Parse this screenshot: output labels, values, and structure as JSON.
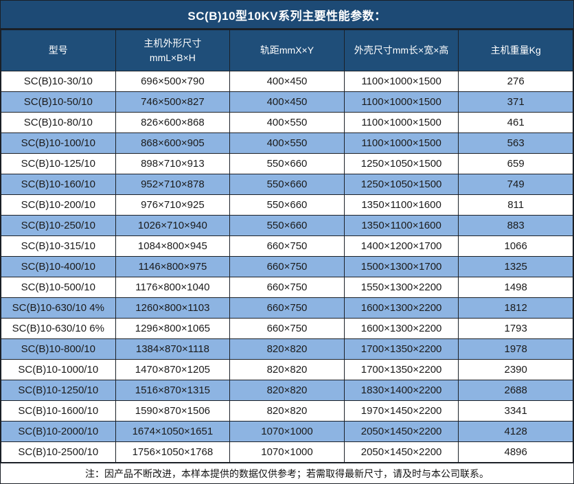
{
  "title": "SC(B)10型10KV系列主要性能参数：",
  "table": {
    "columns": [
      {
        "label": "型号"
      },
      {
        "line1": "主机外形尺寸",
        "line2": "mmL×B×H"
      },
      {
        "label": "轨距mmX×Y"
      },
      {
        "label": "外壳尺寸mm长×宽×高"
      },
      {
        "label": "主机重量Kg"
      }
    ],
    "rows": [
      [
        "SC(B)10-30/10",
        "696×500×790",
        "400×450",
        "1100×1000×1500",
        "276"
      ],
      [
        "SC(B)10-50/10",
        "746×500×827",
        "400×450",
        "1100×1000×1500",
        "371"
      ],
      [
        "SC(B)10-80/10",
        "826×600×868",
        "400×550",
        "1100×1000×1500",
        "461"
      ],
      [
        "SC(B)10-100/10",
        "868×600×905",
        "400×550",
        "1100×1000×1500",
        "563"
      ],
      [
        "SC(B)10-125/10",
        "898×710×913",
        "550×660",
        "1250×1050×1500",
        "659"
      ],
      [
        "SC(B)10-160/10",
        "952×710×878",
        "550×660",
        "1250×1050×1500",
        "749"
      ],
      [
        "SC(B)10-200/10",
        "976×710×925",
        "550×660",
        "1350×1100×1600",
        "811"
      ],
      [
        "SC(B)10-250/10",
        "1026×710×940",
        "550×660",
        "1350×1100×1600",
        "883"
      ],
      [
        "SC(B)10-315/10",
        "1084×800×945",
        "660×750",
        "1400×1200×1700",
        "1066"
      ],
      [
        "SC(B)10-400/10",
        "1146×800×975",
        "660×750",
        "1500×1300×1700",
        "1325"
      ],
      [
        "SC(B)10-500/10",
        "1176×800×1040",
        "660×750",
        "1550×1300×2200",
        "1498"
      ],
      [
        "SC(B)10-630/10 4%",
        "1260×800×1103",
        "660×750",
        "1600×1300×2200",
        "1812"
      ],
      [
        "SC(B)10-630/10 6%",
        "1296×800×1065",
        "660×750",
        "1600×1300×2200",
        "1793"
      ],
      [
        "SC(B)10-800/10",
        "1384×870×1118",
        "820×820",
        "1700×1350×2200",
        "1978"
      ],
      [
        "SC(B)10-1000/10",
        "1470×870×1205",
        "820×820",
        "1700×1350×2200",
        "2390"
      ],
      [
        "SC(B)10-1250/10",
        "1516×870×1315",
        "820×820",
        "1830×1400×2200",
        "2688"
      ],
      [
        "SC(B)10-1600/10",
        "1590×870×1506",
        "820×820",
        "1970×1450×2200",
        "3341"
      ],
      [
        "SC(B)10-2000/10",
        "1674×1050×1651",
        "1070×1000",
        "2050×1450×2200",
        "4128"
      ],
      [
        "SC(B)10-2500/10",
        "1756×1050×1768",
        "1070×1000",
        "2050×1450×2200",
        "4896"
      ]
    ],
    "cell_names": [
      "model-cell",
      "dimensions-cell",
      "gauge-cell",
      "shell-size-cell",
      "weight-cell"
    ]
  },
  "footer_note": "注：因产品不断改进，本样本提供的数据仅供参考；若需取得最新尺寸，请及时与本公司联系。",
  "colors": {
    "title_bg": "#1d4a75",
    "header_bg": "#1f4e79",
    "alt_row_bg": "#8db4e2",
    "border": "#1a1f26",
    "header_text": "#ffffff",
    "body_text": "#1a1a1a"
  }
}
